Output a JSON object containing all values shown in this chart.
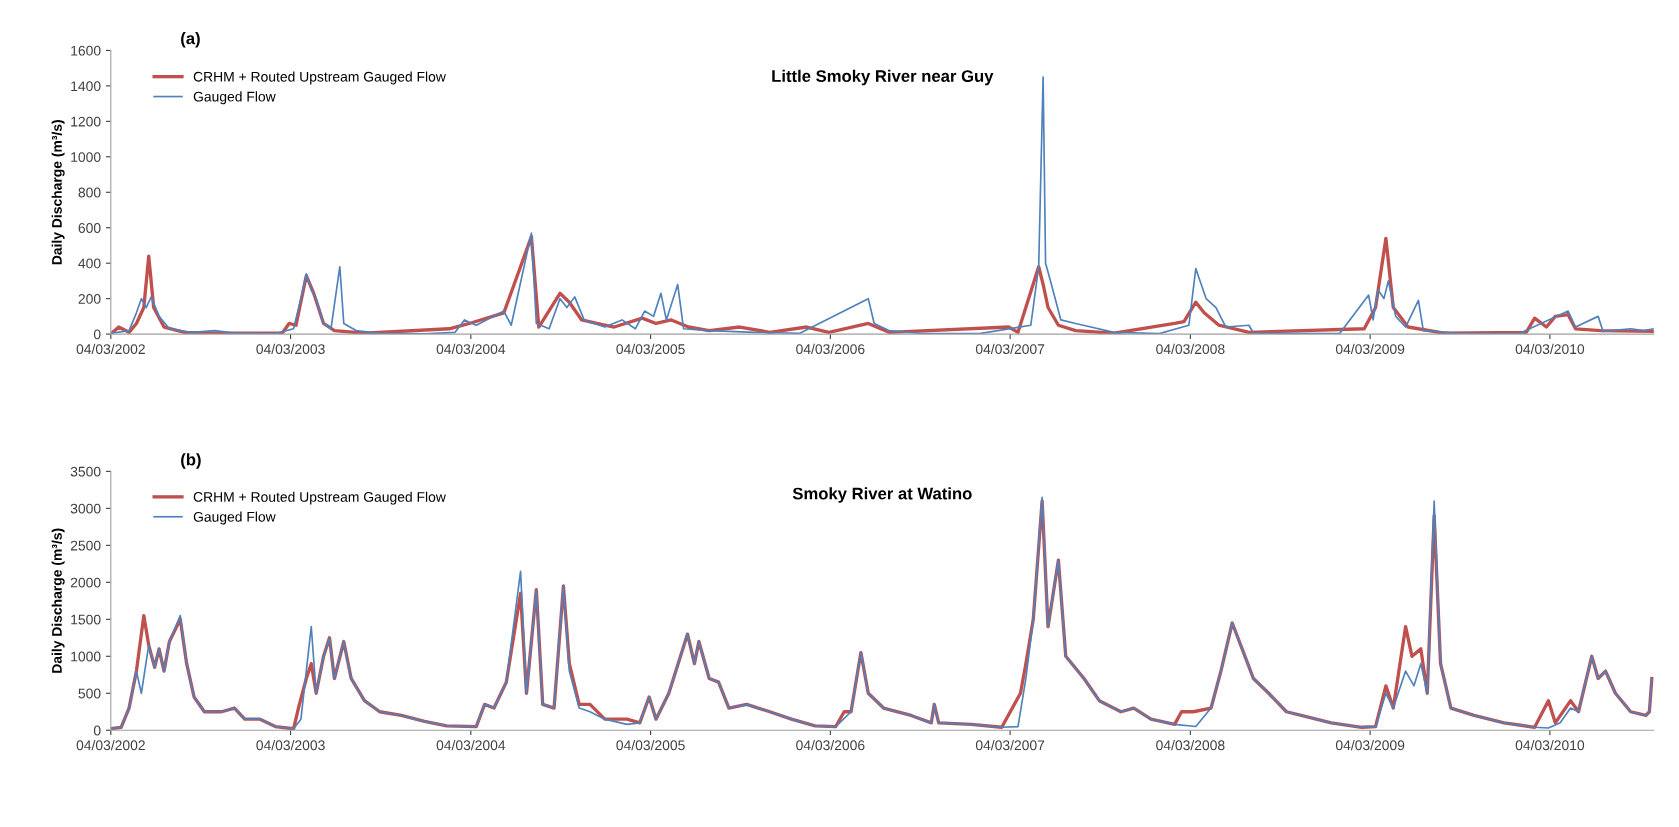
{
  "chart_data": [
    {
      "type": "line",
      "title": "Little Smoky River near Guy",
      "ylabel": "Daily Discharge (m³/s)",
      "annotations": [
        "(a)"
      ],
      "legend": "top left",
      "grid": false,
      "xlim": [
        "2002-03-04",
        "2010-10-01"
      ],
      "ylim": [
        0,
        1600
      ],
      "yticks": [
        0,
        200,
        400,
        600,
        800,
        1000,
        1200,
        1400,
        1600
      ],
      "xticks": [
        {
          "value": "2002-03-04",
          "label": "04/03/2002"
        },
        {
          "value": "2003-03-04",
          "label": "04/03/2003"
        },
        {
          "value": "2004-03-04",
          "label": "04/03/2004"
        },
        {
          "value": "2005-03-04",
          "label": "04/03/2005"
        },
        {
          "value": "2006-03-04",
          "label": "04/03/2006"
        },
        {
          "value": "2007-03-04",
          "label": "04/03/2007"
        },
        {
          "value": "2008-03-04",
          "label": "04/03/2008"
        },
        {
          "value": "2009-03-04",
          "label": "04/03/2009"
        },
        {
          "value": "2010-03-04",
          "label": "04/03/2010"
        }
      ],
      "series": [
        {
          "name": "CRHM + Routed Upstream Gauged Flow",
          "color": "#c0504d",
          "x": [
            "2002-03-04",
            "2002-03-20",
            "2002-04-10",
            "2002-04-25",
            "2002-05-10",
            "2002-05-20",
            "2002-05-30",
            "2002-06-20",
            "2002-08-01",
            "2002-10-01",
            "2003-02-15",
            "2003-03-01",
            "2003-03-15",
            "2003-04-05",
            "2003-04-20",
            "2003-05-10",
            "2003-06-01",
            "2003-08-01",
            "2004-01-20",
            "2004-03-01",
            "2004-05-10",
            "2004-07-05",
            "2004-07-20",
            "2004-09-01",
            "2004-09-20",
            "2004-10-15",
            "2004-11-15",
            "2004-12-20",
            "2005-02-15",
            "2005-03-15",
            "2005-04-15",
            "2005-05-20",
            "2005-07-01",
            "2005-09-01",
            "2005-11-01",
            "2006-01-15",
            "2006-03-01",
            "2006-05-20",
            "2006-07-01",
            "2007-03-01",
            "2007-03-20",
            "2007-05-01",
            "2007-05-10",
            "2007-05-20",
            "2007-06-10",
            "2007-07-15",
            "2007-10-01",
            "2008-02-01",
            "2008-02-20",
            "2008-03-15",
            "2008-04-01",
            "2008-05-01",
            "2008-07-01",
            "2009-02-20",
            "2009-03-15",
            "2009-04-05",
            "2009-04-20",
            "2009-05-20",
            "2009-08-01",
            "2010-01-15",
            "2010-02-01",
            "2010-02-25",
            "2010-03-15",
            "2010-04-10",
            "2010-04-25",
            "2010-06-15",
            "2010-10-01"
          ],
          "values": [
            0,
            40,
            10,
            60,
            150,
            440,
            150,
            40,
            10,
            5,
            5,
            60,
            50,
            330,
            230,
            60,
            20,
            5,
            30,
            60,
            120,
            550,
            40,
            230,
            180,
            80,
            60,
            40,
            90,
            60,
            80,
            40,
            20,
            40,
            10,
            40,
            10,
            60,
            10,
            40,
            10,
            380,
            280,
            150,
            50,
            20,
            5,
            60,
            70,
            180,
            120,
            50,
            10,
            30,
            150,
            540,
            150,
            40,
            5,
            10,
            90,
            40,
            100,
            110,
            30,
            20,
            15
          ]
        },
        {
          "name": "Gauged Flow",
          "color": "#4f81bd",
          "x": [
            "2002-03-04",
            "2002-04-10",
            "2002-04-25",
            "2002-05-05",
            "2002-05-15",
            "2002-05-25",
            "2002-06-10",
            "2002-07-01",
            "2002-08-15",
            "2002-10-01",
            "2002-11-15",
            "2003-02-01",
            "2003-03-10",
            "2003-03-25",
            "2003-04-05",
            "2003-04-15",
            "2003-04-25",
            "2003-05-10",
            "2003-05-25",
            "2003-06-12",
            "2003-06-20",
            "2003-07-15",
            "2003-09-01",
            "2003-12-01",
            "2004-02-01",
            "2004-02-20",
            "2004-03-15",
            "2004-05-10",
            "2004-05-25",
            "2004-07-05",
            "2004-07-15",
            "2004-08-10",
            "2004-09-01",
            "2004-09-15",
            "2004-10-01",
            "2004-10-20",
            "2004-12-01",
            "2005-01-05",
            "2005-02-01",
            "2005-02-20",
            "2005-03-10",
            "2005-03-25",
            "2005-04-05",
            "2005-04-28",
            "2005-05-10",
            "2005-07-01",
            "2005-10-01",
            "2006-01-01",
            "2006-05-20",
            "2006-06-01",
            "2006-07-01",
            "2006-09-01",
            "2007-01-01",
            "2007-04-15",
            "2007-05-01",
            "2007-05-10",
            "2007-05-15",
            "2007-05-25",
            "2007-06-15",
            "2007-07-15",
            "2007-08-15",
            "2007-10-01",
            "2008-01-01",
            "2008-03-01",
            "2008-03-15",
            "2008-04-05",
            "2008-04-25",
            "2008-05-15",
            "2008-07-01",
            "2008-07-10",
            "2009-01-01",
            "2009-03-01",
            "2009-03-10",
            "2009-03-20",
            "2009-04-01",
            "2009-04-10",
            "2009-04-25",
            "2009-05-15",
            "2009-06-10",
            "2009-06-20",
            "2009-09-01",
            "2010-01-01",
            "2010-04-10",
            "2010-04-25",
            "2010-06-10",
            "2010-06-20",
            "2010-08-15",
            "2010-09-10",
            "2010-10-01"
          ],
          "values": [
            5,
            20,
            120,
            200,
            150,
            210,
            100,
            30,
            10,
            20,
            5,
            3,
            30,
            200,
            340,
            250,
            200,
            60,
            30,
            380,
            60,
            20,
            5,
            2,
            10,
            80,
            50,
            130,
            50,
            570,
            60,
            30,
            200,
            150,
            210,
            80,
            40,
            80,
            30,
            130,
            100,
            230,
            80,
            280,
            30,
            20,
            10,
            5,
            200,
            60,
            20,
            5,
            3,
            50,
            380,
            1450,
            400,
            300,
            80,
            60,
            40,
            10,
            3,
            50,
            370,
            200,
            150,
            40,
            50,
            5,
            3,
            220,
            80,
            250,
            200,
            300,
            100,
            40,
            190,
            20,
            5,
            3,
            130,
            40,
            100,
            15,
            30,
            20,
            30
          ]
        }
      ]
    },
    {
      "type": "line",
      "title": "Smoky River at Watino",
      "ylabel": "Daily Discharge (m³/s)",
      "annotations": [
        "(b)"
      ],
      "legend": "top left",
      "grid": false,
      "xlim": [
        "2002-03-04",
        "2010-10-01"
      ],
      "ylim": [
        0,
        3500
      ],
      "yticks": [
        0,
        500,
        1000,
        1500,
        2000,
        2500,
        3000,
        3500
      ],
      "xticks": [
        {
          "value": "2002-03-04",
          "label": "04/03/2002"
        },
        {
          "value": "2003-03-04",
          "label": "04/03/2003"
        },
        {
          "value": "2004-03-04",
          "label": "04/03/2004"
        },
        {
          "value": "2005-03-04",
          "label": "04/03/2005"
        },
        {
          "value": "2006-03-04",
          "label": "04/03/2006"
        },
        {
          "value": "2007-03-04",
          "label": "04/03/2007"
        },
        {
          "value": "2008-03-04",
          "label": "04/03/2008"
        },
        {
          "value": "2009-03-04",
          "label": "04/03/2009"
        },
        {
          "value": "2010-03-04",
          "label": "04/03/2010"
        }
      ],
      "series": [
        {
          "name": "CRHM + Routed Upstream Gauged Flow",
          "color": "#c0504d",
          "x": [
            "2002-03-04",
            "2002-03-25",
            "2002-04-10",
            "2002-04-25",
            "2002-05-10",
            "2002-05-20",
            "2002-06-01",
            "2002-06-10",
            "2002-06-20",
            "2002-07-01",
            "2002-07-23",
            "2002-08-05",
            "2002-08-20",
            "2002-09-10",
            "2002-10-15",
            "2002-11-10",
            "2002-12-01",
            "2003-01-01",
            "2003-02-01",
            "2003-03-10",
            "2003-03-20",
            "2003-04-05",
            "2003-04-15",
            "2003-04-25",
            "2003-05-10",
            "2003-05-22",
            "2003-06-01",
            "2003-06-20",
            "2003-07-05",
            "2003-08-01",
            "2003-09-01",
            "2003-10-15",
            "2003-12-01",
            "2004-01-15",
            "2004-03-15",
            "2004-04-01",
            "2004-04-20",
            "2004-05-15",
            "2004-06-13",
            "2004-06-25",
            "2004-07-15",
            "2004-07-28",
            "2004-08-20",
            "2004-09-08",
            "2004-09-20",
            "2004-10-10",
            "2004-11-01",
            "2004-12-01",
            "2005-01-15",
            "2005-02-10",
            "2005-03-01",
            "2005-03-15",
            "2005-04-10",
            "2005-05-18",
            "2005-06-01",
            "2005-06-10",
            "2005-07-01",
            "2005-07-20",
            "2005-08-10",
            "2005-09-15",
            "2005-11-01",
            "2005-12-15",
            "2006-02-01",
            "2006-03-15",
            "2006-04-01",
            "2006-04-15",
            "2006-05-05",
            "2006-05-20",
            "2006-06-20",
            "2006-08-15",
            "2006-09-25",
            "2006-10-01",
            "2006-10-10",
            "2006-12-15",
            "2007-02-15",
            "2007-03-25",
            "2007-04-05",
            "2007-04-20",
            "2007-05-08",
            "2007-05-20",
            "2007-06-10",
            "2007-06-25",
            "2007-08-01",
            "2007-09-01",
            "2007-10-15",
            "2007-11-10",
            "2007-12-15",
            "2008-02-01",
            "2008-02-15",
            "2008-03-10",
            "2008-04-15",
            "2008-05-05",
            "2008-05-28",
            "2008-06-20",
            "2008-07-10",
            "2008-08-10",
            "2008-09-15",
            "2008-10-15",
            "2008-12-15",
            "2009-02-15",
            "2009-03-15",
            "2009-04-05",
            "2009-04-20",
            "2009-05-15",
            "2009-05-28",
            "2009-06-15",
            "2009-06-28",
            "2009-07-12",
            "2009-07-25",
            "2009-08-15",
            "2009-10-01",
            "2009-12-01",
            "2010-02-01",
            "2010-03-01",
            "2010-03-15",
            "2010-04-15",
            "2010-05-01",
            "2010-05-28",
            "2010-06-10",
            "2010-06-25",
            "2010-07-15",
            "2010-08-15",
            "2010-09-15",
            "2010-09-22",
            "2010-09-27"
          ],
          "values": [
            20,
            40,
            300,
            800,
            1550,
            1150,
            850,
            1100,
            800,
            1200,
            1500,
            900,
            450,
            250,
            250,
            300,
            150,
            150,
            50,
            20,
            300,
            700,
            900,
            500,
            1000,
            1250,
            700,
            1200,
            700,
            400,
            250,
            200,
            120,
            60,
            50,
            350,
            300,
            650,
            1850,
            500,
            1900,
            350,
            300,
            1950,
            900,
            350,
            350,
            150,
            150,
            100,
            450,
            150,
            500,
            1300,
            900,
            1200,
            700,
            650,
            300,
            350,
            250,
            150,
            60,
            50,
            250,
            250,
            1050,
            500,
            300,
            200,
            100,
            350,
            100,
            80,
            40,
            500,
            900,
            1500,
            3100,
            1400,
            2300,
            1000,
            700,
            400,
            250,
            300,
            150,
            80,
            250,
            250,
            300,
            800,
            1450,
            1050,
            700,
            500,
            250,
            200,
            100,
            40,
            50,
            600,
            300,
            1400,
            1000,
            1100,
            500,
            2900,
            900,
            300,
            200,
            100,
            40,
            400,
            100,
            400,
            250,
            1000,
            700,
            800,
            500,
            250,
            200,
            250,
            700
          ]
        },
        {
          "name": "Gauged Flow",
          "color": "#4f81bd",
          "x": [
            "2002-03-04",
            "2002-03-25",
            "2002-04-10",
            "2002-04-25",
            "2002-05-05",
            "2002-05-20",
            "2002-06-01",
            "2002-06-10",
            "2002-06-20",
            "2002-07-01",
            "2002-07-23",
            "2002-08-05",
            "2002-08-20",
            "2002-09-10",
            "2002-10-15",
            "2002-11-10",
            "2002-12-01",
            "2003-01-01",
            "2003-02-01",
            "2003-03-10",
            "2003-03-25",
            "2003-04-15",
            "2003-04-25",
            "2003-05-10",
            "2003-05-22",
            "2003-06-01",
            "2003-06-20",
            "2003-07-05",
            "2003-08-01",
            "2003-09-01",
            "2003-10-15",
            "2003-12-01",
            "2004-01-15",
            "2004-03-15",
            "2004-04-01",
            "2004-04-20",
            "2004-05-15",
            "2004-06-13",
            "2004-06-25",
            "2004-07-15",
            "2004-07-28",
            "2004-08-20",
            "2004-09-08",
            "2004-09-20",
            "2004-10-10",
            "2004-11-01",
            "2004-12-01",
            "2005-01-15",
            "2005-02-10",
            "2005-03-01",
            "2005-03-15",
            "2005-04-10",
            "2005-05-18",
            "2005-06-01",
            "2005-06-10",
            "2005-07-01",
            "2005-07-20",
            "2005-08-10",
            "2005-09-15",
            "2005-11-01",
            "2005-12-15",
            "2006-02-01",
            "2006-03-15",
            "2006-04-15",
            "2006-05-05",
            "2006-05-20",
            "2006-06-20",
            "2006-08-15",
            "2006-09-25",
            "2006-10-01",
            "2006-10-10",
            "2006-12-15",
            "2007-02-15",
            "2007-03-20",
            "2007-04-05",
            "2007-04-20",
            "2007-05-08",
            "2007-05-20",
            "2007-06-10",
            "2007-06-25",
            "2007-08-01",
            "2007-09-01",
            "2007-10-15",
            "2007-11-10",
            "2007-12-15",
            "2008-02-01",
            "2008-03-15",
            "2008-04-15",
            "2008-05-05",
            "2008-05-28",
            "2008-06-20",
            "2008-07-10",
            "2008-08-10",
            "2008-09-15",
            "2008-10-15",
            "2008-12-15",
            "2009-02-15",
            "2009-03-15",
            "2009-04-05",
            "2009-04-20",
            "2009-05-15",
            "2009-06-01",
            "2009-06-15",
            "2009-06-28",
            "2009-07-12",
            "2009-07-25",
            "2009-08-15",
            "2009-10-01",
            "2009-12-01",
            "2010-02-01",
            "2010-03-01",
            "2010-03-25",
            "2010-04-15",
            "2010-05-01",
            "2010-05-28",
            "2010-06-10",
            "2010-06-25",
            "2010-07-15",
            "2010-08-15",
            "2010-09-15",
            "2010-09-22",
            "2010-09-27"
          ],
          "values": [
            20,
            40,
            300,
            800,
            500,
            1150,
            850,
            1100,
            800,
            1200,
            1550,
            900,
            450,
            250,
            250,
            300,
            150,
            150,
            50,
            20,
            150,
            1400,
            500,
            1000,
            1250,
            700,
            1200,
            700,
            400,
            250,
            200,
            120,
            60,
            50,
            350,
            300,
            650,
            2150,
            500,
            1900,
            350,
            300,
            1950,
            800,
            300,
            250,
            150,
            80,
            100,
            450,
            150,
            500,
            1300,
            900,
            1200,
            700,
            650,
            300,
            350,
            250,
            150,
            60,
            50,
            250,
            1050,
            500,
            300,
            200,
            100,
            350,
            100,
            80,
            40,
            50,
            700,
            1500,
            3150,
            1400,
            2300,
            1000,
            700,
            400,
            250,
            300,
            150,
            80,
            50,
            300,
            800,
            1450,
            1050,
            700,
            500,
            250,
            200,
            100,
            40,
            50,
            500,
            300,
            800,
            600,
            900,
            500,
            3100,
            900,
            300,
            200,
            100,
            40,
            30,
            100,
            300,
            250,
            1000,
            700,
            800,
            500,
            250,
            200,
            250,
            700
          ]
        }
      ]
    }
  ]
}
